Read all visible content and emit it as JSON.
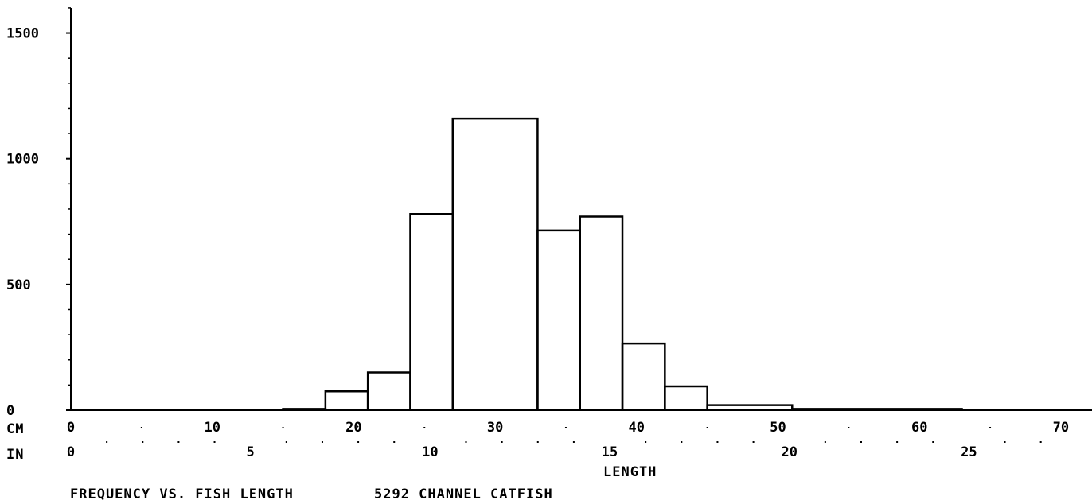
{
  "chart_data": {
    "type": "bar",
    "title": "FREQUENCY VS. FISH LENGTH",
    "subtitle": "5292 CHANNEL CATFISH",
    "xlabel": "LENGTH",
    "ylabel": "",
    "x_unit_primary": "CM",
    "x_unit_secondary": "IN",
    "xlim": [
      0,
      71
    ],
    "ylim": [
      0,
      1600
    ],
    "yticks": [
      0,
      500,
      1000,
      1500
    ],
    "xticks_cm": [
      0,
      10,
      20,
      30,
      40,
      50,
      60,
      70
    ],
    "xticks_in": [
      0,
      5,
      10,
      15,
      20,
      25
    ],
    "bins_cm": [
      [
        15,
        18
      ],
      [
        18,
        21
      ],
      [
        21,
        24
      ],
      [
        24,
        27
      ],
      [
        27,
        33
      ],
      [
        33,
        36
      ],
      [
        36,
        39
      ],
      [
        39,
        42
      ],
      [
        42,
        45
      ],
      [
        45,
        51
      ],
      [
        51,
        63
      ]
    ],
    "values": [
      5,
      75,
      150,
      780,
      1160,
      715,
      770,
      265,
      95,
      20,
      5
    ],
    "grid": false,
    "style": "step-histogram"
  },
  "labels": {
    "cm_axis": "CM",
    "in_axis": "IN",
    "y_zero": "0"
  }
}
